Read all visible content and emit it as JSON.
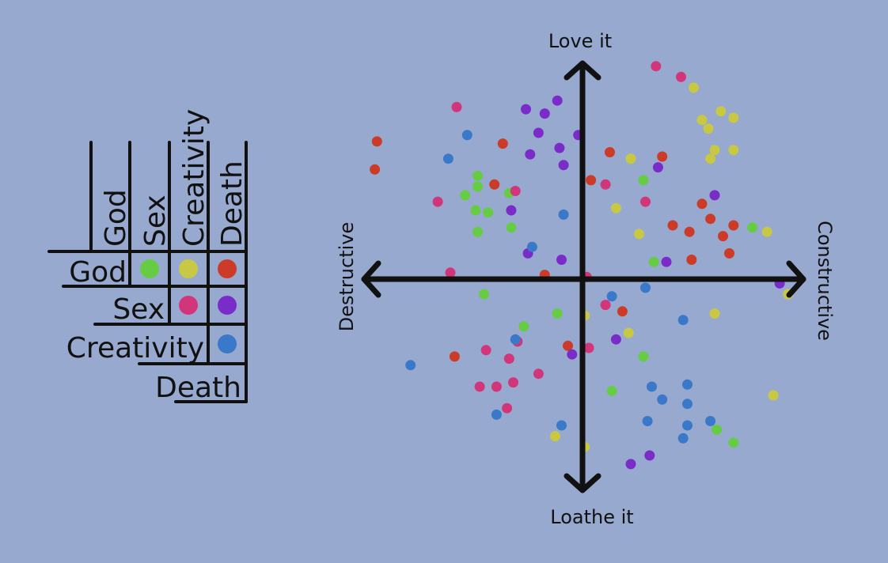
{
  "legend_matrix": {
    "headers": [
      "God",
      "Sex",
      "Creativity",
      "Death"
    ],
    "cells": [
      {
        "row": "God",
        "col": "Sex",
        "color": "#66cc44"
      },
      {
        "row": "God",
        "col": "Creativity",
        "color": "#c8c842"
      },
      {
        "row": "God",
        "col": "Death",
        "color": "#cc3b27"
      },
      {
        "row": "Sex",
        "col": "Creativity",
        "color": "#d2367a"
      },
      {
        "row": "Sex",
        "col": "Death",
        "color": "#7a2cc9"
      },
      {
        "row": "Creativity",
        "col": "Death",
        "color": "#3a78c9"
      }
    ]
  },
  "chart_data": {
    "type": "scatter",
    "title": "",
    "xlabel_left": "Destructive",
    "xlabel_right": "Constructive",
    "ylabel_top": "Love it",
    "ylabel_bottom": "Loathe it",
    "xlim": [
      -10,
      10
    ],
    "ylim": [
      -10,
      10
    ],
    "grid": false,
    "series": [
      {
        "key": "god-sex",
        "color": "#66cc44",
        "points": [
          [
            -5.0,
            4.8
          ],
          [
            -5.6,
            3.9
          ],
          [
            -5.0,
            4.3
          ],
          [
            -5.1,
            3.2
          ],
          [
            -5.0,
            2.2
          ],
          [
            -4.5,
            3.1
          ],
          [
            -3.5,
            4.0
          ],
          [
            -3.4,
            2.4
          ],
          [
            -4.7,
            -0.7
          ],
          [
            -2.8,
            -2.2
          ],
          [
            -1.2,
            -1.6
          ],
          [
            1.4,
            -5.2
          ],
          [
            2.9,
            4.6
          ],
          [
            3.4,
            0.8
          ],
          [
            2.9,
            -3.6
          ],
          [
            8.1,
            2.4
          ],
          [
            7.2,
            -7.6
          ],
          [
            6.4,
            -7.0
          ]
        ]
      },
      {
        "key": "god-creativity",
        "color": "#c8c842",
        "points": [
          [
            5.3,
            8.9
          ],
          [
            6.6,
            7.8
          ],
          [
            5.7,
            7.4
          ],
          [
            6.0,
            7.0
          ],
          [
            7.2,
            7.5
          ],
          [
            6.3,
            6.0
          ],
          [
            6.1,
            5.6
          ],
          [
            7.2,
            6.0
          ],
          [
            2.3,
            5.6
          ],
          [
            1.6,
            3.3
          ],
          [
            2.7,
            2.1
          ],
          [
            8.8,
            2.2
          ],
          [
            9.8,
            -0.7
          ],
          [
            6.3,
            -1.6
          ],
          [
            2.2,
            -2.5
          ],
          [
            0.1,
            -1.7
          ],
          [
            9.1,
            -5.4
          ],
          [
            -1.3,
            -7.3
          ],
          [
            0.1,
            -7.8
          ]
        ]
      },
      {
        "key": "god-death",
        "color": "#cc3b27",
        "points": [
          [
            -9.8,
            6.4
          ],
          [
            -9.9,
            5.1
          ],
          [
            -3.8,
            6.3
          ],
          [
            -4.2,
            4.4
          ],
          [
            -1.8,
            0.2
          ],
          [
            1.3,
            5.9
          ],
          [
            3.8,
            5.7
          ],
          [
            0.4,
            4.6
          ],
          [
            5.7,
            3.5
          ],
          [
            4.3,
            2.5
          ],
          [
            5.1,
            2.2
          ],
          [
            6.1,
            2.8
          ],
          [
            7.2,
            2.5
          ],
          [
            6.7,
            2.0
          ],
          [
            7.0,
            1.2
          ],
          [
            5.2,
            0.9
          ],
          [
            1.9,
            -1.5
          ],
          [
            -6.1,
            -3.6
          ],
          [
            -0.7,
            -3.1
          ]
        ]
      },
      {
        "key": "sex-creativity",
        "color": "#d2367a",
        "points": [
          [
            3.5,
            9.9
          ],
          [
            4.7,
            9.4
          ],
          [
            -6.0,
            8.0
          ],
          [
            -6.9,
            3.6
          ],
          [
            -3.2,
            4.1
          ],
          [
            1.1,
            4.4
          ],
          [
            3.0,
            3.6
          ],
          [
            -6.3,
            0.3
          ],
          [
            0.2,
            0.1
          ],
          [
            1.1,
            -1.2
          ],
          [
            -3.1,
            -2.9
          ],
          [
            -4.6,
            -3.3
          ],
          [
            -3.5,
            -3.7
          ],
          [
            0.3,
            -3.2
          ],
          [
            -4.9,
            -5.0
          ],
          [
            -4.1,
            -5.0
          ],
          [
            -3.3,
            -4.8
          ],
          [
            -2.1,
            -4.4
          ],
          [
            -3.6,
            -6.0
          ]
        ]
      },
      {
        "key": "sex-death",
        "color": "#7a2cc9",
        "points": [
          [
            -2.7,
            7.9
          ],
          [
            -1.8,
            7.7
          ],
          [
            -1.2,
            8.3
          ],
          [
            -2.1,
            6.8
          ],
          [
            -2.5,
            5.8
          ],
          [
            -1.1,
            6.1
          ],
          [
            -0.9,
            5.3
          ],
          [
            -0.2,
            6.7
          ],
          [
            -3.4,
            3.2
          ],
          [
            -2.6,
            1.2
          ],
          [
            -1.0,
            0.9
          ],
          [
            3.6,
            5.2
          ],
          [
            6.3,
            3.9
          ],
          [
            4.0,
            0.8
          ],
          [
            9.4,
            -0.2
          ],
          [
            1.6,
            -2.8
          ],
          [
            -0.5,
            -3.5
          ],
          [
            3.2,
            -8.2
          ],
          [
            2.3,
            -8.6
          ]
        ]
      },
      {
        "key": "creativity-death",
        "color": "#3a78c9",
        "points": [
          [
            -5.5,
            6.7
          ],
          [
            -6.4,
            5.6
          ],
          [
            -0.9,
            3.0
          ],
          [
            -2.4,
            1.5
          ],
          [
            -3.2,
            -2.8
          ],
          [
            -8.2,
            -4.0
          ],
          [
            1.4,
            -0.8
          ],
          [
            3.0,
            -0.4
          ],
          [
            4.8,
            -1.9
          ],
          [
            3.3,
            -5.0
          ],
          [
            5.0,
            -4.9
          ],
          [
            3.8,
            -5.6
          ],
          [
            5.0,
            -5.8
          ],
          [
            3.1,
            -6.6
          ],
          [
            5.0,
            -6.8
          ],
          [
            6.1,
            -6.6
          ],
          [
            4.8,
            -7.4
          ],
          [
            -4.1,
            -6.3
          ],
          [
            -1.0,
            -6.8
          ]
        ]
      }
    ]
  }
}
